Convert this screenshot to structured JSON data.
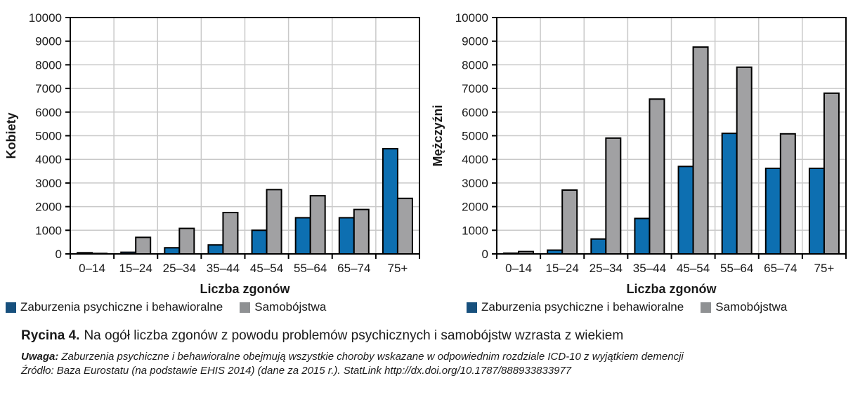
{
  "colors": {
    "bar_blue": "#0d6fb1",
    "bar_gray": "#a1a1a3",
    "legend_blue": "#17507d",
    "legend_gray": "#8f9193",
    "grid": "#c9c9c9",
    "axis": "#000000",
    "text": "#1a1a1a"
  },
  "legend": {
    "items": [
      {
        "key": "psychiczne",
        "label": "Zaburzenia psychiczne i behawioralne",
        "color": "#17507d"
      },
      {
        "key": "samobojstwa",
        "label": "Samobójstwa",
        "color": "#8f9193"
      }
    ]
  },
  "chart_data": [
    {
      "type": "bar",
      "id": "kobiety",
      "title": "",
      "ylabel": "Kobiety",
      "xlabel": "Liczba zgonów",
      "ylim": [
        0,
        10000
      ],
      "ytick_step": 1000,
      "grid": true,
      "legend_position": "bottom",
      "categories": [
        "0–14",
        "15–24",
        "25–34",
        "35–44",
        "45–54",
        "55–64",
        "65–74",
        "75+"
      ],
      "series": [
        {
          "name": "Zaburzenia psychiczne i behawioralne",
          "key": "psychiczne",
          "color": "#0d6fb1",
          "values": [
            50,
            70,
            260,
            380,
            1000,
            1530,
            1530,
            4450
          ]
        },
        {
          "name": "Samobójstwa",
          "key": "samobojstwa",
          "color": "#a1a1a3",
          "values": [
            20,
            700,
            1080,
            1750,
            2720,
            2460,
            1880,
            2350
          ]
        }
      ]
    },
    {
      "type": "bar",
      "id": "mezczyzni",
      "title": "",
      "ylabel": "Mężczyźni",
      "xlabel": "Liczba zgonów",
      "ylim": [
        0,
        10000
      ],
      "ytick_step": 1000,
      "grid": true,
      "legend_position": "bottom",
      "categories": [
        "0–14",
        "15–24",
        "25–34",
        "35–44",
        "45–54",
        "55–64",
        "65–74",
        "75+"
      ],
      "series": [
        {
          "name": "Zaburzenia psychiczne i behawioralne",
          "key": "psychiczne",
          "color": "#0d6fb1",
          "values": [
            30,
            160,
            630,
            1500,
            3700,
            5100,
            3620,
            3620
          ]
        },
        {
          "name": "Samobójstwa",
          "key": "samobojstwa",
          "color": "#a1a1a3",
          "values": [
            100,
            2700,
            4900,
            6550,
            8750,
            7900,
            5080,
            6800
          ]
        }
      ]
    }
  ],
  "caption": {
    "label": "Rycina 4.",
    "text": "Na ogół liczba zgonów z powodu problemów psychicznych i samobójstw wzrasta z wiekiem"
  },
  "note": {
    "label": "Uwaga:",
    "text": "Zaburzenia psychiczne i behawioralne obejmują wszystkie choroby wskazane w odpowiednim rozdziale ICD-10 z wyjątkiem demencji"
  },
  "source": {
    "label": "Źródło:",
    "text": "Baza Eurostatu (na podstawie EHIS 2014) (dane za 2015 r.). StatLink http://dx.doi.org/10.1787/888933833977"
  }
}
